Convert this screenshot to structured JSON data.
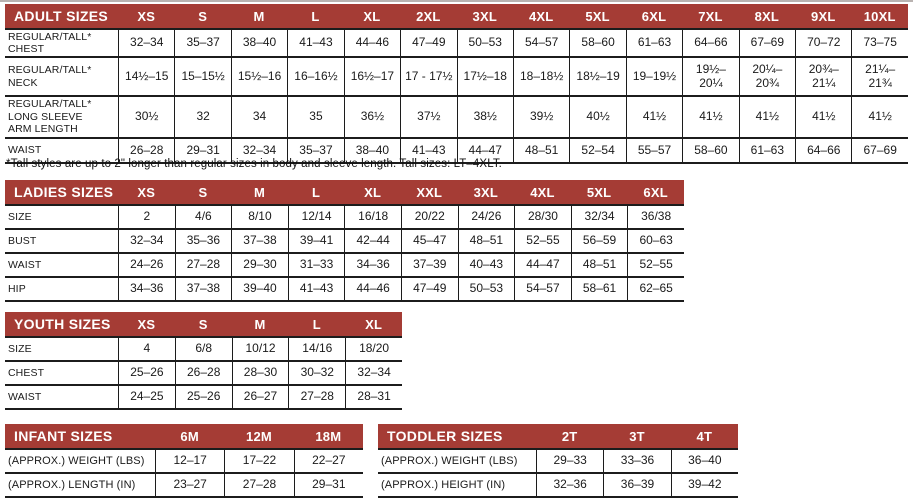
{
  "colors": {
    "header_bg": "#A53C35",
    "header_text": "#FFFFFF",
    "border": "#1C1C1C",
    "text": "#1A1A1A"
  },
  "footnote": "*Tall styles are up to 2\" longer than regular sizes in body and sleeve length. Tall sizes: LT–4XLT.",
  "tables": {
    "adult": {
      "title": "ADULT SIZES",
      "columns": [
        "XS",
        "S",
        "M",
        "L",
        "XL",
        "2XL",
        "3XL",
        "4XL",
        "5XL",
        "6XL",
        "7XL",
        "8XL",
        "9XL",
        "10XL"
      ],
      "rows": [
        {
          "label": "REGULAR/TALL*\nCHEST",
          "values": [
            "32–34",
            "35–37",
            "38–40",
            "41–43",
            "44–46",
            "47–49",
            "50–53",
            "54–57",
            "58–60",
            "61–63",
            "64–66",
            "67–69",
            "70–72",
            "73–75"
          ]
        },
        {
          "label": "REGULAR/TALL*\nNECK",
          "values": [
            "14½–15",
            "15–15½",
            "15½–16",
            "16–16½",
            "16½–17",
            "17 - 17½",
            "17½–18",
            "18–18½",
            "18½–19",
            "19–19½",
            "19½–\n20¼",
            "20¼–\n20¾",
            "20¾–\n21¼",
            "21¼–\n21¾"
          ]
        },
        {
          "label": "REGULAR/TALL*\nLONG SLEEVE\nARM LENGTH",
          "values": [
            "30½",
            "32",
            "34",
            "35",
            "36½",
            "37½",
            "38½",
            "39½",
            "40½",
            "41½",
            "41½",
            "41½",
            "41½",
            "41½"
          ]
        },
        {
          "label": "WAIST",
          "values": [
            "26–28",
            "29–31",
            "32–34",
            "35–37",
            "38–40",
            "41–43",
            "44–47",
            "48–51",
            "52–54",
            "55–57",
            "58–60",
            "61–63",
            "64–66",
            "67–69"
          ]
        }
      ]
    },
    "ladies": {
      "title": "LADIES SIZES",
      "columns": [
        "XS",
        "S",
        "M",
        "L",
        "XL",
        "XXL",
        "3XL",
        "4XL",
        "5XL",
        "6XL"
      ],
      "rows": [
        {
          "label": "SIZE",
          "values": [
            "2",
            "4/6",
            "8/10",
            "12/14",
            "16/18",
            "20/22",
            "24/26",
            "28/30",
            "32/34",
            "36/38"
          ]
        },
        {
          "label": "BUST",
          "values": [
            "32–34",
            "35–36",
            "37–38",
            "39–41",
            "42–44",
            "45–47",
            "48–51",
            "52–55",
            "56–59",
            "60–63"
          ]
        },
        {
          "label": "WAIST",
          "values": [
            "24–26",
            "27–28",
            "29–30",
            "31–33",
            "34–36",
            "37–39",
            "40–43",
            "44–47",
            "48–51",
            "52–55"
          ]
        },
        {
          "label": "HIP",
          "values": [
            "34–36",
            "37–38",
            "39–40",
            "41–43",
            "44–46",
            "47–49",
            "50–53",
            "54–57",
            "58–61",
            "62–65"
          ]
        }
      ]
    },
    "youth": {
      "title": "YOUTH SIZES",
      "columns": [
        "XS",
        "S",
        "M",
        "L",
        "XL"
      ],
      "rows": [
        {
          "label": "SIZE",
          "values": [
            "4",
            "6/8",
            "10/12",
            "14/16",
            "18/20"
          ]
        },
        {
          "label": "CHEST",
          "values": [
            "25–26",
            "26–28",
            "28–30",
            "30–32",
            "32–34"
          ]
        },
        {
          "label": "WAIST",
          "values": [
            "24–25",
            "25–26",
            "26–27",
            "27–28",
            "28–31"
          ]
        }
      ]
    },
    "infant": {
      "title": "INFANT SIZES",
      "columns": [
        "6M",
        "12M",
        "18M"
      ],
      "rows": [
        {
          "label": "(APPROX.) WEIGHT (LBS)",
          "values": [
            "12–17",
            "17–22",
            "22–27"
          ]
        },
        {
          "label": "(APPROX.) LENGTH (IN)",
          "values": [
            "23–27",
            "27–28",
            "29–31"
          ]
        }
      ]
    },
    "toddler": {
      "title": "TODDLER SIZES",
      "columns": [
        "2T",
        "3T",
        "4T"
      ],
      "rows": [
        {
          "label": "(APPROX.) WEIGHT (LBS)",
          "values": [
            "29–33",
            "33–36",
            "36–40"
          ]
        },
        {
          "label": "(APPROX.) HEIGHT (IN)",
          "values": [
            "32–36",
            "36–39",
            "39–42"
          ]
        }
      ]
    }
  }
}
